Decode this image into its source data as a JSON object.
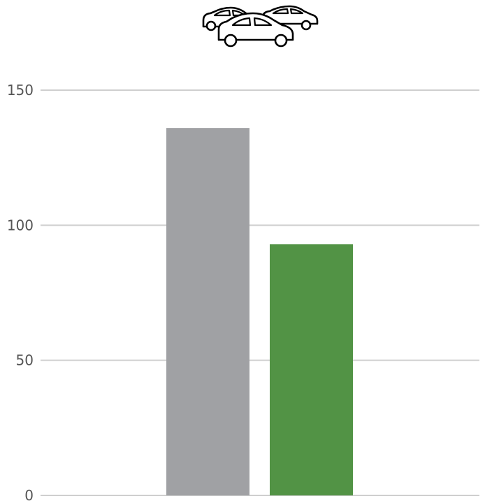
{
  "icons": {
    "header": "cars-icon"
  },
  "colors": {
    "grid": "#cfcfcf",
    "tick_text": "#555555"
  },
  "chart_data": {
    "type": "bar",
    "categories": [
      "",
      ""
    ],
    "values": [
      136,
      93
    ],
    "bar_colors": [
      "#a0a1a4",
      "#529345"
    ],
    "title": "",
    "xlabel": "",
    "ylabel": "",
    "ylim": [
      0,
      150
    ],
    "yticks": [
      0,
      50,
      100,
      150
    ],
    "ytick_labels": [
      "0",
      "50",
      "100",
      "150"
    ],
    "grid": true,
    "legend": "none"
  }
}
